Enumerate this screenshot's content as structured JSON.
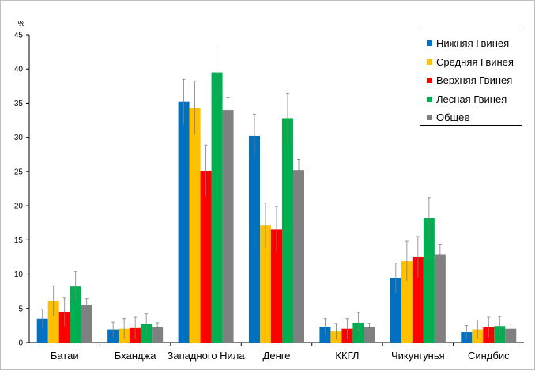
{
  "chart_data": {
    "type": "bar",
    "title": "",
    "xlabel": "",
    "ylabel": "%",
    "ylim": [
      0,
      45
    ],
    "yticks": [
      0,
      5,
      10,
      15,
      20,
      25,
      30,
      35,
      40,
      45
    ],
    "categories": [
      "Батаи",
      "Бханджа",
      "Западного Нила",
      "Денге",
      "ККГЛ",
      "Чикунгунья",
      "Синдбис"
    ],
    "series": [
      {
        "name": "Нижняя Гвинея",
        "color": "#0070c0",
        "values": [
          3.5,
          1.9,
          35.2,
          30.2,
          2.3,
          9.4,
          1.5
        ],
        "errors": [
          1.4,
          1.1,
          3.3,
          3.2,
          1.2,
          2.2,
          1.0
        ]
      },
      {
        "name": "Средняя Гвинея",
        "color": "#ffc000",
        "values": [
          6.1,
          2.0,
          34.3,
          17.1,
          1.6,
          11.9,
          1.9
        ],
        "errors": [
          2.2,
          1.5,
          3.9,
          3.3,
          1.2,
          2.9,
          1.4
        ]
      },
      {
        "name": "Верхняя Гвинея",
        "color": "#ff0000",
        "values": [
          4.4,
          2.1,
          25.1,
          16.5,
          2.0,
          12.5,
          2.2
        ],
        "errors": [
          2.1,
          1.6,
          3.8,
          3.4,
          1.5,
          3.0,
          1.5
        ]
      },
      {
        "name": "Лесная Гвинея",
        "color": "#00b050",
        "values": [
          8.2,
          2.7,
          39.5,
          32.8,
          2.9,
          18.2,
          2.4
        ],
        "errors": [
          2.2,
          1.5,
          3.7,
          3.6,
          1.5,
          3.0,
          1.4
        ]
      },
      {
        "name": "Общее",
        "color": "#808080",
        "values": [
          5.5,
          2.2,
          34.0,
          25.2,
          2.2,
          12.9,
          2.0
        ],
        "errors": [
          0.9,
          0.7,
          1.8,
          1.6,
          0.6,
          1.4,
          0.7
        ]
      }
    ],
    "legend_position": "top-right"
  }
}
